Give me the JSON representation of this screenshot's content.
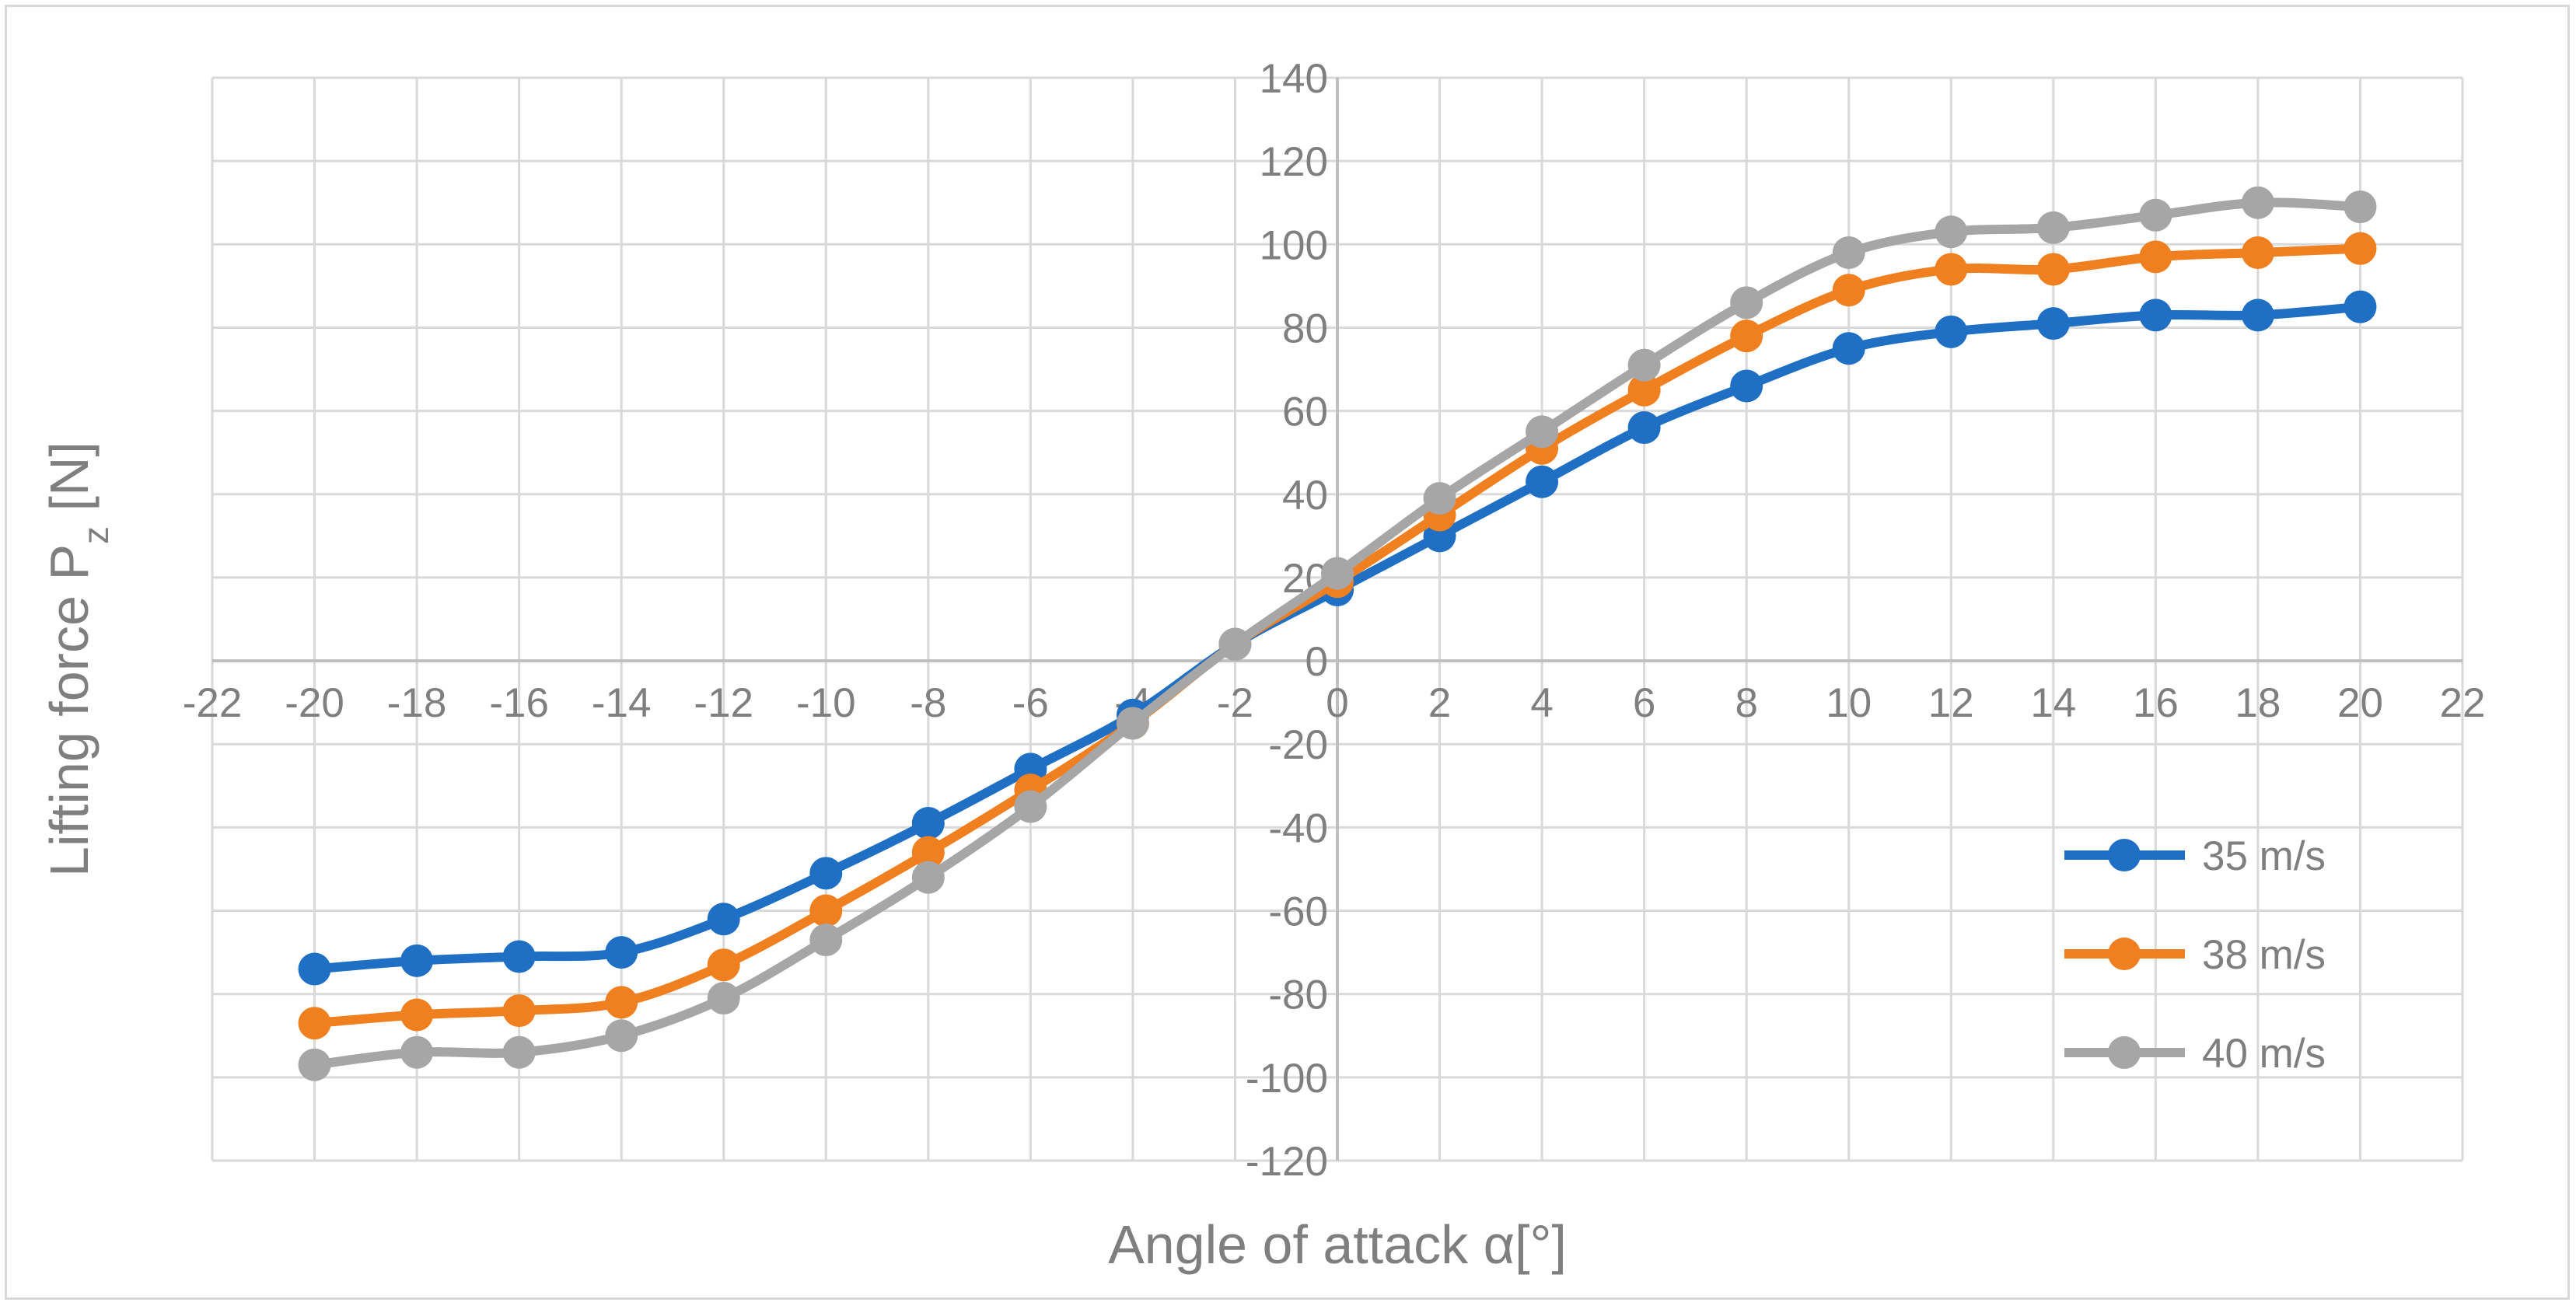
{
  "chart_data": {
    "type": "line",
    "title": "",
    "xlabel": "Angle of attack α[°]",
    "ylabel": {
      "main": "Lifting force P",
      "sub": "z",
      "unit": " [N]"
    },
    "xlim": [
      -22,
      22
    ],
    "ylim": [
      -120,
      140
    ],
    "x_ticks": [
      "-22",
      "-20",
      "-18",
      "-16",
      "-14",
      "-12",
      "-10",
      "-8",
      "-6",
      "-4",
      "-2",
      "0",
      "2",
      "4",
      "6",
      "8",
      "10",
      "12",
      "14",
      "16",
      "18",
      "20",
      "22"
    ],
    "y_ticks": [
      "-120",
      "-100",
      "-80",
      "-60",
      "-40",
      "-20",
      "0",
      "20",
      "40",
      "60",
      "80",
      "100",
      "120",
      "140"
    ],
    "grid": true,
    "legend_position": "right",
    "x": [
      -20,
      -18,
      -16,
      -14,
      -12,
      -10,
      -8,
      -6,
      -4,
      -2,
      0,
      2,
      4,
      6,
      8,
      10,
      12,
      14,
      16,
      18,
      20
    ],
    "series": [
      {
        "name": "35 m/s",
        "color": "#1f6fc5",
        "values": [
          -74,
          -72,
          -71,
          -70,
          -62,
          -51,
          -39,
          -26,
          -13,
          4,
          17,
          30,
          43,
          56,
          66,
          75,
          79,
          81,
          83,
          83,
          85
        ]
      },
      {
        "name": "38 m/s",
        "color": "#f07f1f",
        "values": [
          -87,
          -85,
          -84,
          -82,
          -73,
          -60,
          -46,
          -31,
          -15,
          4,
          19,
          35,
          51,
          65,
          78,
          89,
          94,
          94,
          97,
          98,
          99
        ]
      },
      {
        "name": "40 m/s",
        "color": "#a6a6a6",
        "values": [
          -97,
          -94,
          -94,
          -90,
          -81,
          -67,
          -52,
          -35,
          -15,
          4,
          21,
          39,
          55,
          71,
          86,
          98,
          103,
          104,
          107,
          110,
          109
        ]
      }
    ]
  }
}
